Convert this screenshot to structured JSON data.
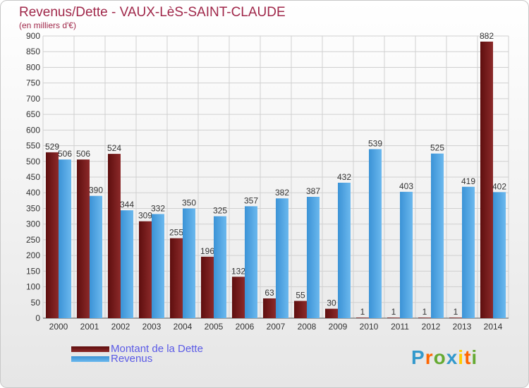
{
  "title": "Revenus/Dette - VAUX-LèS-SAINT-CLAUDE",
  "subtitle": "(en milliers d'€)",
  "logo": {
    "text": "Proxiti",
    "letters": [
      "P",
      "r",
      "o",
      "x",
      "i",
      "t",
      "i"
    ],
    "colors": [
      "#3399cc",
      "#ff6600",
      "#66aa33",
      "#3399cc",
      "#ffcc00",
      "#ff6600",
      "#66aa33"
    ]
  },
  "colors": {
    "dette": "#7a1b1b",
    "revenus": "#4aa3e0",
    "grid": "#d0d0d0",
    "title": "#a0284a",
    "legend_text": "#5a5ae6"
  },
  "chart_data": {
    "type": "bar",
    "title": "Revenus/Dette - VAUX-LèS-SAINT-CLAUDE",
    "ylabel": "(en milliers d'€)",
    "ylim": [
      0,
      900
    ],
    "yticks": [
      0,
      50,
      100,
      150,
      200,
      250,
      300,
      350,
      400,
      450,
      500,
      550,
      600,
      650,
      700,
      750,
      800,
      850,
      900
    ],
    "grid": true,
    "legend": "bottom-left",
    "categories": [
      "2000",
      "2001",
      "2002",
      "2003",
      "2004",
      "2005",
      "2006",
      "2007",
      "2008",
      "2009",
      "2010",
      "2011",
      "2012",
      "2013",
      "2014"
    ],
    "series": [
      {
        "name": "Montant de la Dette",
        "values": [
          529,
          506,
          524,
          309,
          255,
          196,
          132,
          63,
          55,
          30,
          1,
          1,
          1,
          1,
          882
        ]
      },
      {
        "name": "Revenus",
        "values": [
          506,
          390,
          344,
          332,
          350,
          325,
          357,
          382,
          387,
          432,
          539,
          403,
          525,
          419,
          402
        ]
      }
    ]
  }
}
